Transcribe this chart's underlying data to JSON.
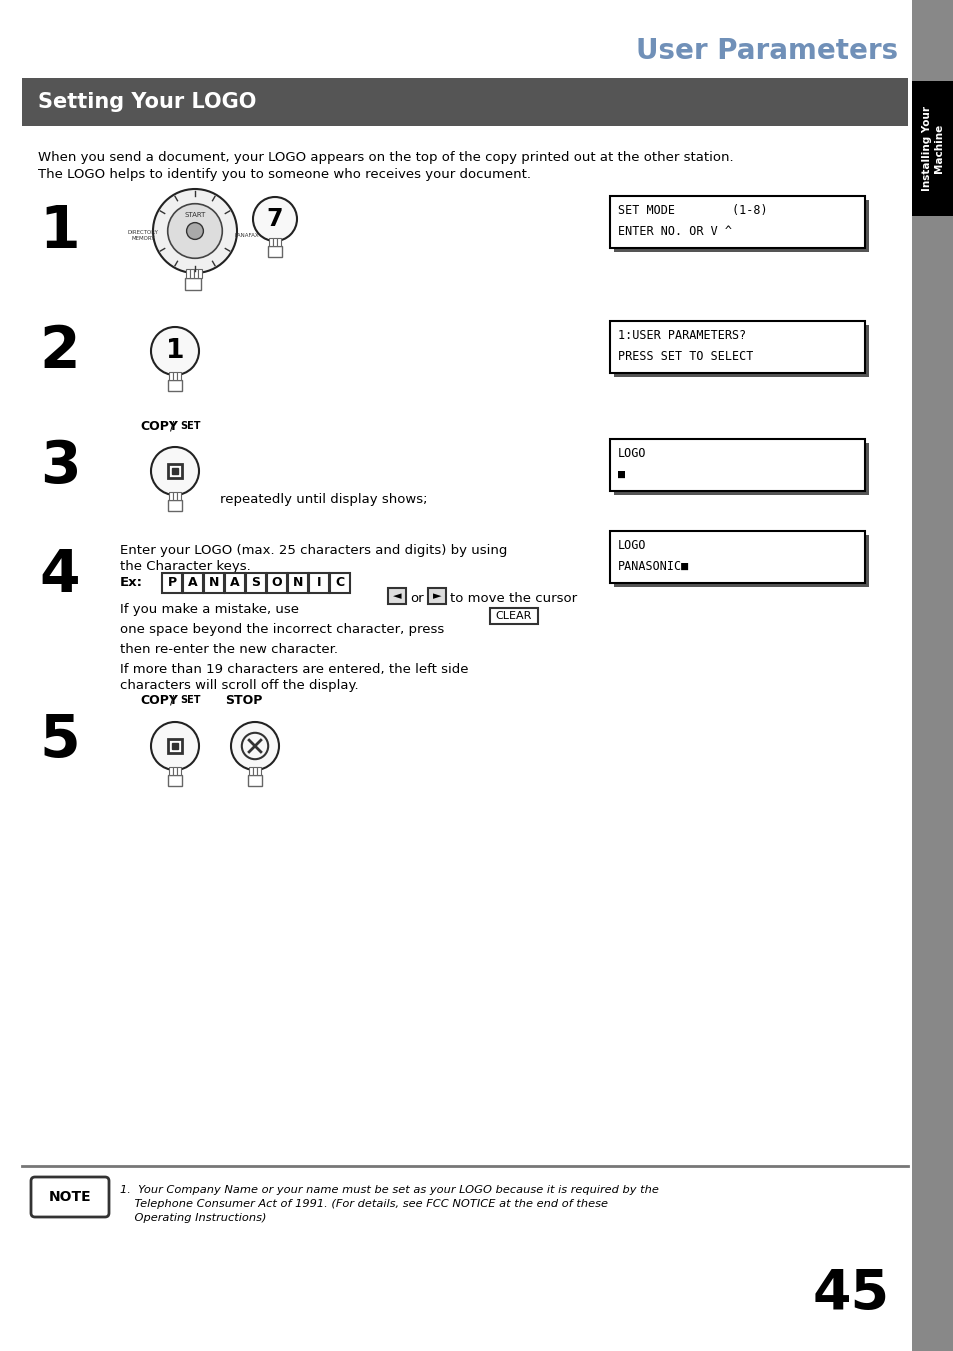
{
  "page_bg": "#ffffff",
  "sidebar_bg": "#888888",
  "sidebar_black_bg": "#000000",
  "sidebar_text": "Installing Your\nMachine",
  "sidebar_text_color": "#ffffff",
  "header_title": "User Parameters",
  "header_title_color": "#7090b8",
  "section_bg": "#555555",
  "section_text": "Setting Your LOGO",
  "section_text_color": "#ffffff",
  "intro_line1": "When you send a document, your LOGO appears on the top of the copy printed out at the other station.",
  "intro_line2": "The LOGO helps to identify you to someone who receives your document.",
  "display1_lines": [
    "SET MODE        (1-8)",
    "ENTER NO. OR V ^"
  ],
  "display2_lines": [
    "1:USER PARAMETERS?",
    "PRESS SET TO SELECT"
  ],
  "display3_lines": [
    "LOGO",
    "■"
  ],
  "display4_lines": [
    "LOGO",
    "PANASONIC■"
  ],
  "step3_label": "COPY / SET",
  "step3_sub": "repeatedly until display shows;",
  "step5_label1": "COPY / SET",
  "step5_label2": "STOP",
  "note_text1": "1.  Your Company Name or your name must be set as your LOGO because it is required by the",
  "note_text2": "    Telephone Consumer Act of 1991. (For details, see FCC NOTICE at the end of these",
  "note_text3": "    Operating Instructions)",
  "page_number": "45",
  "footer_line_color": "#777777",
  "display_border": "#000000",
  "display_shadow": "#555555",
  "display_bg": "#ffffff"
}
